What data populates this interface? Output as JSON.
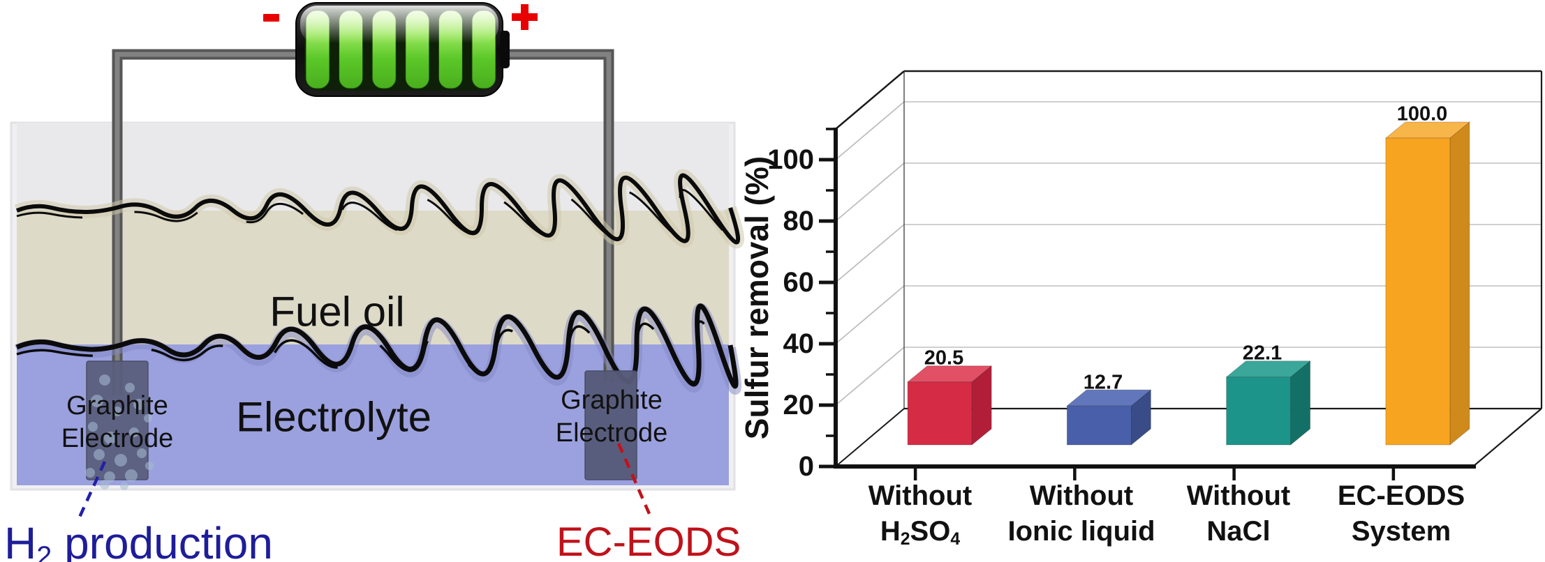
{
  "diagram": {
    "battery": {
      "neg_symbol": "-",
      "pos_symbol": "+"
    },
    "labels": {
      "fuel_oil": "Fuel oil",
      "electrolyte": "Electrolyte",
      "left_electrode_line1": "Graphite",
      "left_electrode_line2": "Electrode",
      "right_electrode_line1": "Graphite",
      "right_electrode_line2": "Electrode",
      "h2_main": "H",
      "h2_sub": "2",
      "h2_rest": " production",
      "ec_eods": "EC-EODS"
    },
    "colors": {
      "headspace_layer": "#E9E9EB",
      "fuel_oil_layer": "#DEDAC8",
      "electrolyte_layer": "#9BA1DE",
      "electrode": "#5A5F7D",
      "h2_text": "#1E1D99",
      "ec_eods_text": "#C0121A",
      "terminal_red": "#E80000",
      "battery_green": "#6FD63A"
    }
  },
  "chart_data": {
    "type": "bar",
    "projection": "3d",
    "title": "",
    "xlabel": "",
    "ylabel": "Sulfur removal (%)",
    "ylim": [
      0,
      110
    ],
    "yticks": [
      0,
      20,
      40,
      60,
      80,
      100
    ],
    "ytick_labels": [
      "0",
      "20",
      "40",
      "60",
      "80",
      "100"
    ],
    "minor_tick_step": 10,
    "grid": true,
    "legend": false,
    "categories": [
      {
        "line1": "Without",
        "line2_parts": [
          {
            "t": "H"
          },
          {
            "t": "2",
            "sub": true
          },
          {
            "t": "SO"
          },
          {
            "t": "4",
            "sub": true
          }
        ]
      },
      {
        "line1": "Without",
        "line2": "Ionic liquid"
      },
      {
        "line1": "Without",
        "line2": "NaCl"
      },
      {
        "line1": "EC-EODS",
        "line2": "System"
      }
    ],
    "values": [
      20.5,
      12.7,
      22.1,
      100.0
    ],
    "value_labels": [
      "20.5",
      "12.7",
      "22.1",
      "100.0"
    ],
    "bar_colors": [
      {
        "front": "#D62B45",
        "top": "#E25066",
        "side": "#B21E38"
      },
      {
        "front": "#4A5FA9",
        "top": "#6277BB",
        "side": "#394C87"
      },
      {
        "front": "#1D9489",
        "top": "#3AA79A",
        "side": "#137066"
      },
      {
        "front": "#F7A521",
        "top": "#F8B54A",
        "side": "#D08A1B"
      }
    ]
  }
}
